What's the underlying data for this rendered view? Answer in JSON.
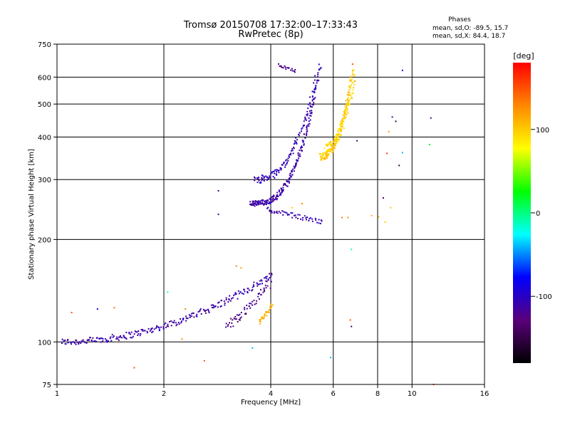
{
  "chart_data": {
    "type": "scatter",
    "title": "Tromsø 20150708 17:32:00–17:33:43",
    "subtitle": "RwPretec (8p)",
    "stats_heading": "Phases",
    "stats_o": "mean, sd,O: -89.5, 15.7",
    "stats_x": "mean, sd,X: 84.4, 18.7",
    "xlabel": "Frequency [MHz]",
    "ylabel": "Stationary phase Virtual Height [km]",
    "xscale": "log",
    "yscale": "log",
    "xlim": [
      1,
      16
    ],
    "ylim": [
      75,
      750
    ],
    "x_ticks": [
      1,
      2,
      4,
      6,
      8,
      10,
      16
    ],
    "y_ticks": [
      75,
      100,
      200,
      300,
      400,
      500,
      600,
      750
    ],
    "x_grid": [
      2,
      4,
      6,
      8,
      10
    ],
    "y_grid": [
      100,
      200,
      300,
      400,
      500,
      600
    ],
    "grid": true,
    "colorbar": {
      "label": "[deg]",
      "range": [
        -180,
        180
      ],
      "ticks": [
        100,
        0,
        -100
      ],
      "colors": [
        "#000000",
        "#5a007a",
        "#0000ff",
        "#00ffff",
        "#00ff00",
        "#ffff00",
        "#ff8800",
        "#ff0000"
      ]
    },
    "traces": [
      {
        "f0": 1.03,
        "f1": 4.05,
        "h0": 100,
        "h1": 158,
        "phase": -110,
        "n": 240,
        "curve": 2.0,
        "jitter": 0.045
      },
      {
        "f0": 3.0,
        "f1": 4.0,
        "h0": 112,
        "h1": 150,
        "phase": -120,
        "n": 60,
        "curve": 1.3,
        "jitter": 0.06
      },
      {
        "f0": 3.7,
        "f1": 4.05,
        "h0": 114,
        "h1": 128,
        "phase": 110,
        "n": 35,
        "curve": 1.0,
        "jitter": 0.035
      },
      {
        "f0": 3.5,
        "f1": 5.5,
        "h0": 255,
        "h1": 650,
        "phase": -110,
        "n": 230,
        "curve": 3.0,
        "jitter": 0.04
      },
      {
        "f0": 3.6,
        "f1": 5.4,
        "h0": 300,
        "h1": 600,
        "phase": -105,
        "n": 120,
        "curve": 2.5,
        "jitter": 0.05
      },
      {
        "f0": 3.9,
        "f1": 5.6,
        "h0": 245,
        "h1": 225,
        "phase": -110,
        "n": 50,
        "curve": 1.0,
        "jitter": 0.03
      },
      {
        "f0": 5.5,
        "f1": 6.8,
        "h0": 350,
        "h1": 620,
        "phase": 100,
        "n": 170,
        "curve": 2.4,
        "jitter": 0.045
      },
      {
        "f0": 5.7,
        "f1": 6.9,
        "h0": 370,
        "h1": 600,
        "phase": 95,
        "n": 90,
        "curve": 2.0,
        "jitter": 0.06
      },
      {
        "f0": 4.2,
        "f1": 4.7,
        "h0": 650,
        "h1": 625,
        "phase": -120,
        "n": 18,
        "curve": 1.0,
        "jitter": 0.02
      }
    ],
    "points": [
      [
        1.1,
        122,
        150
      ],
      [
        1.3,
        125,
        -100
      ],
      [
        1.45,
        126,
        140
      ],
      [
        1.65,
        84,
        150
      ],
      [
        2.05,
        140,
        -20
      ],
      [
        2.25,
        102,
        130
      ],
      [
        2.3,
        125,
        130
      ],
      [
        2.6,
        88,
        150
      ],
      [
        2.85,
        278,
        -120
      ],
      [
        2.85,
        237,
        -120
      ],
      [
        3.2,
        167,
        130
      ],
      [
        3.3,
        165,
        120
      ],
      [
        3.55,
        96,
        -40
      ],
      [
        4.6,
        248,
        100
      ],
      [
        4.9,
        255,
        130
      ],
      [
        5.9,
        90,
        -40
      ],
      [
        6.35,
        232,
        130
      ],
      [
        6.6,
        232,
        130
      ],
      [
        6.75,
        187,
        -10
      ],
      [
        6.8,
        655,
        150
      ],
      [
        6.7,
        116,
        150
      ],
      [
        6.75,
        111,
        -120
      ],
      [
        7.0,
        390,
        -120
      ],
      [
        7.7,
        235,
        110
      ],
      [
        8.05,
        233,
        120
      ],
      [
        8.3,
        265,
        -130
      ],
      [
        8.5,
        358,
        160
      ],
      [
        8.6,
        415,
        120
      ],
      [
        8.7,
        248,
        100
      ],
      [
        8.4,
        225,
        100
      ],
      [
        8.8,
        458,
        -120
      ],
      [
        9.0,
        445,
        -150
      ],
      [
        9.2,
        330,
        -150
      ],
      [
        9.4,
        360,
        -40
      ],
      [
        9.4,
        628,
        -100
      ],
      [
        11.2,
        380,
        20
      ],
      [
        11.5,
        75,
        150
      ],
      [
        11.3,
        455,
        -120
      ]
    ]
  }
}
